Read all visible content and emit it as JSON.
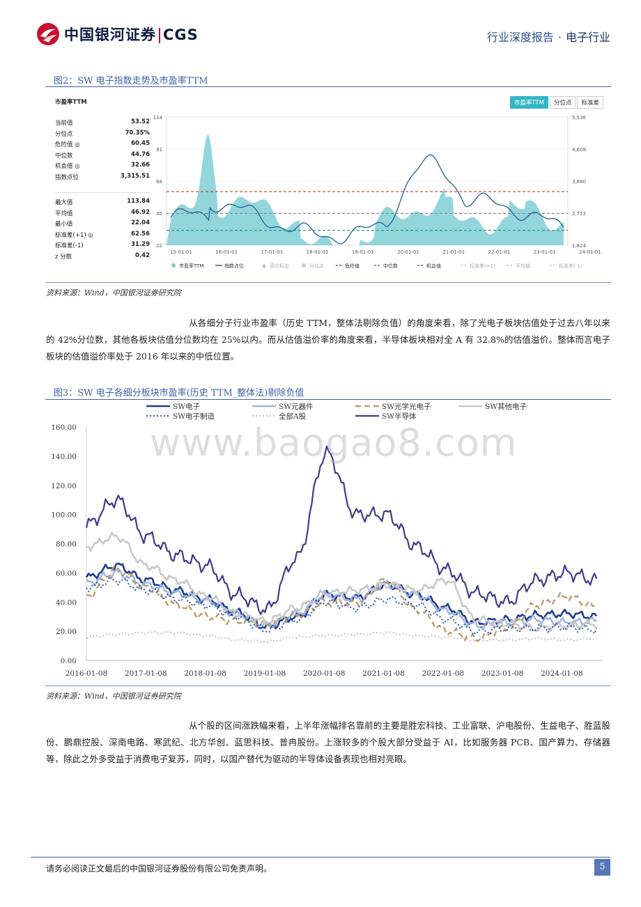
{
  "header": {
    "logo_text": "中国银河证券",
    "logo_latin": "CGS",
    "report_type": "行业深度报告",
    "separator": "·",
    "sector": "电子行业"
  },
  "figure2": {
    "title": "图2：SW 电子指数走势及市盈率TTM",
    "panel_title": "市盈率TTM",
    "stats_top": [
      {
        "k": "当前值",
        "v": "53.52"
      },
      {
        "k": "分位点",
        "v": "70.35%"
      },
      {
        "k": "危险值 ◎",
        "v": "60.45"
      },
      {
        "k": "中位数",
        "v": "44.76"
      },
      {
        "k": "机会值 ◎",
        "v": "32.66"
      },
      {
        "k": "指数点位",
        "v": "3,315.51"
      }
    ],
    "stats_bottom": [
      {
        "k": "最大值",
        "v": "113.84"
      },
      {
        "k": "平均值",
        "v": "46.92"
      },
      {
        "k": "最小值",
        "v": "22.04"
      },
      {
        "k": "标准差(+1) ◎",
        "v": "62.56"
      },
      {
        "k": "标准差(-1)",
        "v": "31.29"
      },
      {
        "k": "z 分数",
        "v": "0.42"
      }
    ],
    "tabs": [
      "市盈率TTM",
      "分位点",
      "标准差"
    ],
    "y_left": [
      "114",
      "91",
      "68",
      "45",
      "22"
    ],
    "y_right": [
      "5,536",
      "4,608",
      "3,680",
      "2,752",
      "1,824"
    ],
    "x_ticks": [
      "15-01-01",
      "16-01-01",
      "17-01-01",
      "18-01-01",
      "19-01-01",
      "20-01-01",
      "21-01-01",
      "22-01-01",
      "23-01-01",
      "24-01-01"
    ],
    "legend": [
      "市盈率TTM",
      "指数点位",
      "调仓标志",
      "分位点",
      "危险值",
      "中位数",
      "机会值",
      "标准差(+1)",
      "平均值",
      "标准差(-1)"
    ],
    "colors": {
      "area": "#7fcfd6",
      "index": "#1f5f95",
      "danger": "#c0392b",
      "median": "#888888",
      "opportunity": "#1e8f77"
    },
    "source": "资料来源：Wind，中国银河证券研究院"
  },
  "para1": "从各细分子行业市盈率（历史 TTM，整体法剔除负值）的角度来看，除了光电子板块估值处于过去八年以来的 42%分位数，其他各板块估值分位数均在 25%以内。而从估值溢价率的角度来看，半导体板块相对全 A 有 32.8%的估值溢价。整体而言电子板块的估值溢价率处于 2016 年以来的中低位置。",
  "figure3": {
    "title": "图3：SW 电子各细分板块市盈率(历史 TTM_整体法)剔除负值",
    "watermark": "www.baogao8.com",
    "source": "资料来源：Wind，中国银河证券研究院",
    "chart_data": {
      "type": "line",
      "ylim": [
        0,
        160
      ],
      "y_ticks": [
        "0.00",
        "20.00",
        "40.00",
        "60.00",
        "80.00",
        "100.00",
        "120.00",
        "140.00",
        "160.00"
      ],
      "x_ticks": [
        "2016-01-08",
        "2017-01-08",
        "2018-01-08",
        "2019-01-08",
        "2020-01-08",
        "2021-01-08",
        "2022-01-08",
        "2023-01-08",
        "2024-01-08"
      ],
      "x": [
        2016.0,
        2016.5,
        2017.0,
        2017.5,
        2018.0,
        2018.5,
        2019.0,
        2019.5,
        2020.0,
        2020.5,
        2021.0,
        2021.5,
        2022.0,
        2022.5,
        2023.0,
        2023.5,
        2024.0,
        2024.5
      ],
      "series": [
        {
          "name": "SW电子",
          "color": "#1f3d8f",
          "dash": "solid",
          "width": 2.6,
          "values": [
            57,
            65,
            55,
            48,
            42,
            33,
            23,
            30,
            45,
            43,
            52,
            45,
            36,
            26,
            28,
            31,
            32,
            30
          ]
        },
        {
          "name": "SW元器件",
          "color": "#9fb3e2",
          "dash": "solid",
          "width": 2.4,
          "values": [
            53,
            60,
            52,
            46,
            41,
            32,
            24,
            32,
            45,
            42,
            52,
            45,
            34,
            24,
            26,
            28,
            26,
            27
          ]
        },
        {
          "name": "SW光学光电子",
          "color": "#b99c6b",
          "dash": "8,5",
          "width": 2.4,
          "values": [
            44,
            62,
            50,
            38,
            30,
            27,
            25,
            31,
            40,
            39,
            55,
            35,
            20,
            15,
            22,
            38,
            44,
            37
          ]
        },
        {
          "name": "SW其他电子",
          "color": "#c8c8c8",
          "dash": "solid",
          "width": 2.6,
          "values": [
            78,
            85,
            65,
            55,
            44,
            32,
            27,
            36,
            46,
            48,
            52,
            48,
            55,
            28,
            25,
            22,
            24,
            25
          ]
        },
        {
          "name": "SW电子制造",
          "color": "#2c5bb0",
          "dash": "2,3",
          "width": 2.0,
          "values": [
            50,
            55,
            48,
            42,
            38,
            30,
            21,
            28,
            40,
            36,
            42,
            38,
            28,
            20,
            22,
            22,
            23,
            21
          ]
        },
        {
          "name": "全部A股",
          "color": "#bdbdbd",
          "dash": "2,3",
          "width": 1.8,
          "values": [
            16,
            18,
            19,
            19,
            17,
            14,
            13,
            16,
            17,
            18,
            19,
            17,
            16,
            14,
            14,
            15,
            14,
            15
          ]
        },
        {
          "name": "SW半导体",
          "color": "#3f3a8c",
          "dash": "solid",
          "width": 2.2,
          "values": [
            93,
            110,
            85,
            72,
            65,
            45,
            35,
            70,
            142,
            100,
            100,
            78,
            62,
            46,
            40,
            55,
            60,
            55
          ]
        }
      ]
    }
  },
  "para2": "从个股的区间涨跌幅来看，上半年涨幅排名靠前的主要是胜宏科技、工业富联、沪电股份、生益电子、胜蓝股份、鹏鼎控股、深南电路、寒武纪、北方华创、蓝思科技、普冉股份。上涨较多的个股大部分受益于 AI，比如服务器 PCB、国产算力、存储器等，除此之外多受益于消费电子复苏，同时，以国产替代为驱动的半导体设备表现也相对亮眼。",
  "footer": {
    "disclaimer": "请务必阅读正文最后的中国银河证券股份有限公司免责声明。",
    "page": "5"
  }
}
